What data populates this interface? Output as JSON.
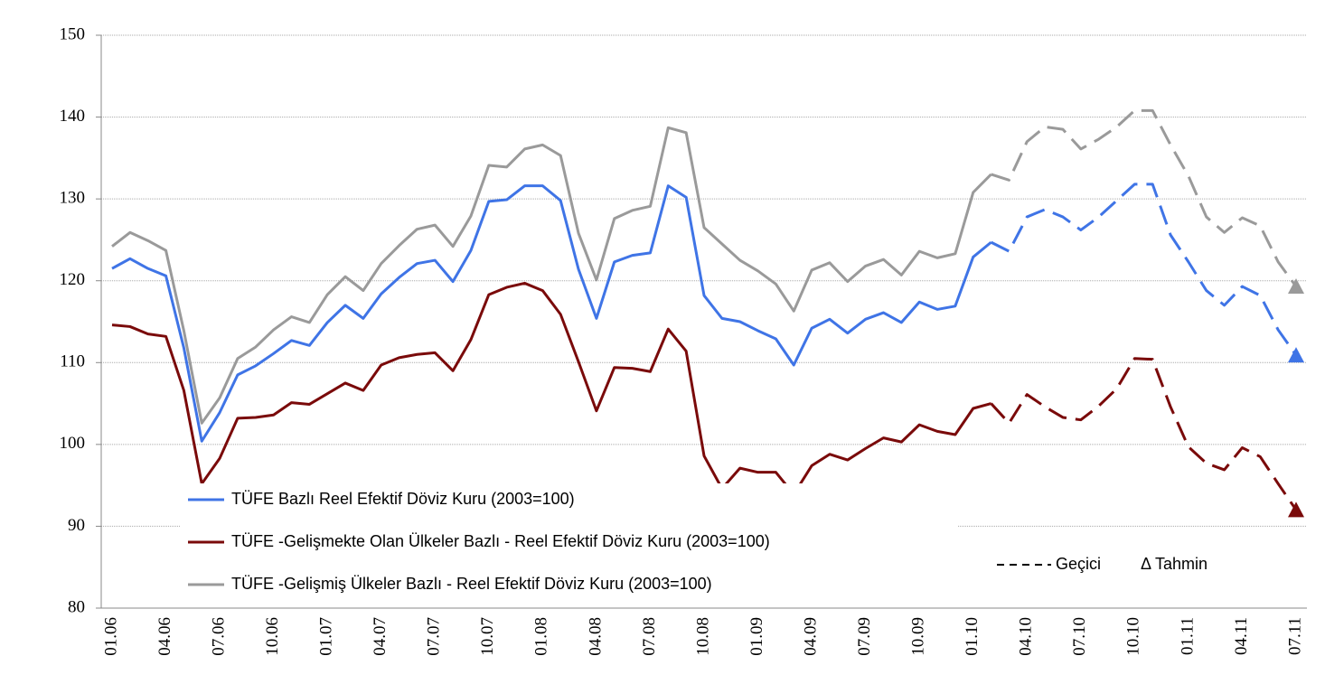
{
  "chart_data": {
    "type": "line",
    "categories": [
      "01.06",
      null,
      null,
      "04.06",
      null,
      null,
      "07.06",
      null,
      null,
      "10.06",
      null,
      null,
      "01.07",
      null,
      null,
      "04.07",
      null,
      null,
      "07.07",
      null,
      null,
      "10.07",
      null,
      null,
      "01.08",
      null,
      null,
      "04.08",
      null,
      null,
      "07.08",
      null,
      null,
      "10.08",
      null,
      null,
      "01.09",
      null,
      null,
      "04.09",
      null,
      null,
      "07.09",
      null,
      null,
      "10.09",
      null,
      null,
      "01.10",
      null,
      null,
      "04.10",
      null,
      null,
      "07.10",
      null,
      null,
      "10.10",
      null,
      null,
      "01.11",
      null,
      null,
      "04.11",
      null,
      null,
      "07.11"
    ],
    "series": [
      {
        "name": "TÜFE  Bazlı Reel Efektif Döviz Kuru (2003=100)",
        "color": "#3f74e6",
        "values": [
          121.5,
          122.7,
          121.5,
          120.6,
          111.8,
          100.4,
          103.9,
          108.5,
          109.6,
          111.1,
          112.7,
          112.1,
          114.9,
          117.0,
          115.4,
          118.4,
          120.4,
          122.1,
          122.5,
          119.9,
          123.7,
          129.7,
          129.9,
          131.6,
          131.6,
          129.8,
          121.4,
          115.4,
          122.3,
          123.1,
          123.4,
          131.6,
          130.2,
          118.2,
          115.4,
          115.0,
          113.9,
          112.9,
          109.7,
          114.2,
          115.3,
          113.6,
          115.3,
          116.1,
          114.9,
          117.4,
          116.5,
          116.9,
          122.9,
          124.7,
          123.6,
          127.8,
          128.7,
          127.8,
          126.2,
          127.8,
          129.8,
          131.8,
          131.8,
          125.6,
          122.3,
          118.8,
          117.0,
          119.3,
          118.2,
          114.0,
          110.9
        ]
      },
      {
        "name": "TÜFE -Gelişmekte Olan Ülkeler Bazlı - Reel Efektif Döviz Kuru (2003=100)",
        "color": "#7a0a0a",
        "values": [
          114.6,
          114.4,
          113.5,
          113.2,
          106.6,
          95.2,
          98.3,
          103.2,
          103.3,
          103.6,
          105.1,
          104.9,
          106.2,
          107.5,
          106.6,
          109.7,
          110.6,
          111.0,
          111.2,
          109.0,
          112.8,
          118.3,
          119.2,
          119.7,
          118.8,
          115.9,
          110.1,
          104.1,
          109.4,
          109.3,
          108.9,
          114.1,
          111.4,
          98.6,
          94.6,
          97.1,
          96.6,
          96.6,
          93.9,
          97.4,
          98.8,
          98.1,
          99.5,
          100.8,
          100.3,
          102.4,
          101.6,
          101.2,
          104.4,
          105.0,
          102.6,
          106.1,
          104.6,
          103.3,
          103.0,
          104.7,
          106.8,
          110.5,
          110.4,
          104.6,
          99.7,
          97.7,
          96.9,
          99.6,
          98.5,
          95.2,
          92.0
        ]
      },
      {
        "name": "TÜFE -Gelişmiş Ülkeler Bazlı - Reel Efektif Döviz Kuru (2003=100)",
        "color": "#9a9a9a",
        "values": [
          124.2,
          125.9,
          124.9,
          123.7,
          113.9,
          102.6,
          105.7,
          110.5,
          111.9,
          114.0,
          115.6,
          114.9,
          118.3,
          120.5,
          118.8,
          122.1,
          124.3,
          126.3,
          126.8,
          124.2,
          127.9,
          134.1,
          133.9,
          136.1,
          136.6,
          135.3,
          125.8,
          120.1,
          127.6,
          128.6,
          129.1,
          138.7,
          138.1,
          126.5,
          124.5,
          122.5,
          121.2,
          119.6,
          116.3,
          121.3,
          122.2,
          119.9,
          121.8,
          122.6,
          120.7,
          123.6,
          122.8,
          123.3,
          130.8,
          133.0,
          132.3,
          137.0,
          138.8,
          138.5,
          136.1,
          137.3,
          138.8,
          140.8,
          140.8,
          136.6,
          132.8,
          127.8,
          125.9,
          127.7,
          126.7,
          122.3,
          119.3
        ]
      }
    ],
    "provisional_label": "Geçici",
    "provisional_from": 49,
    "forecast_label": "Δ Tahmin",
    "ylim": [
      80,
      150
    ],
    "yticks": [
      80,
      90,
      100,
      110,
      120,
      130,
      140,
      150
    ],
    "grid": true
  }
}
